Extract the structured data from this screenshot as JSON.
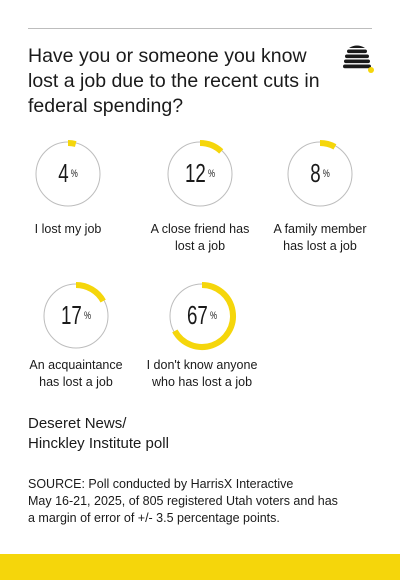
{
  "title": "Have you or someone you know lost a job due to the recent cuts in federal spending?",
  "chart_data": {
    "type": "pie",
    "categories": [
      "I lost my job",
      "A close friend has lost a job",
      "A family member has lost a job",
      "An acquaintance has lost a job",
      "I don't know anyone who has lost a job"
    ],
    "values": [
      4,
      12,
      8,
      17,
      67
    ],
    "unit": "%"
  },
  "labels": [
    {
      "value": "4",
      "sign": "%",
      "line1": "I lost my job",
      "line2": ""
    },
    {
      "value": "12",
      "sign": "%",
      "line1": "A close friend has",
      "line2": "lost a job"
    },
    {
      "value": "8",
      "sign": "%",
      "line1": "A family member",
      "line2": "has lost a job"
    },
    {
      "value": "17",
      "sign": "%",
      "line1": "An acquaintance",
      "line2": "has lost a job"
    },
    {
      "value": "67",
      "sign": "%",
      "line1": "I don't know anyone",
      "line2": "who has lost a job"
    }
  ],
  "credit": {
    "line1": "Deseret News/",
    "line2": "Hinckley Institute poll"
  },
  "source": {
    "line1": "SOURCE: Poll conducted by HarrisX Interactive",
    "line2": "May 16-21, 2025, of 805 registered Utah voters and has",
    "line3": "a margin of error of +/- 3.5 percentage points."
  },
  "colors": {
    "accent": "#f5d60b",
    "track": "#bdbdbd",
    "text": "#1a1a1a"
  },
  "logo_icon": "beehive-icon"
}
